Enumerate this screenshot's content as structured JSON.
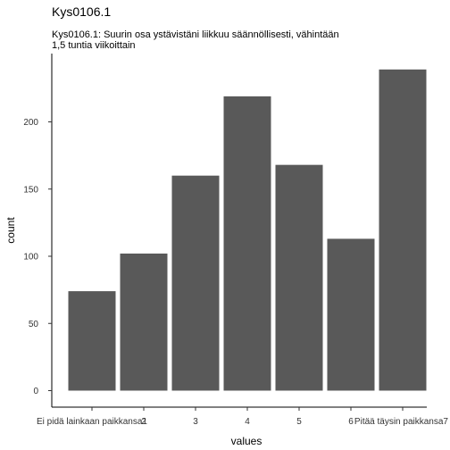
{
  "chart_data": {
    "type": "bar",
    "title": "Kys0106.1",
    "subtitle_lines": [
      "Kys0106.1: Suurin osa ystävistäni liikkuu säännöllisesti, vähintään",
      "1,5 tuntia viikoittain"
    ],
    "xlabel": "values",
    "ylabel": "count",
    "categories": [
      "Ei pidä lainkaan paikkansa1",
      "2",
      "3",
      "4",
      "5",
      "6",
      "Pitää täysin paikkansa7"
    ],
    "values": [
      74,
      102,
      160,
      219,
      168,
      113,
      239
    ],
    "ylim": [
      0,
      250
    ],
    "yticks": [
      0,
      50,
      100,
      150,
      200
    ],
    "bar_color": "#595959",
    "grid": false
  }
}
